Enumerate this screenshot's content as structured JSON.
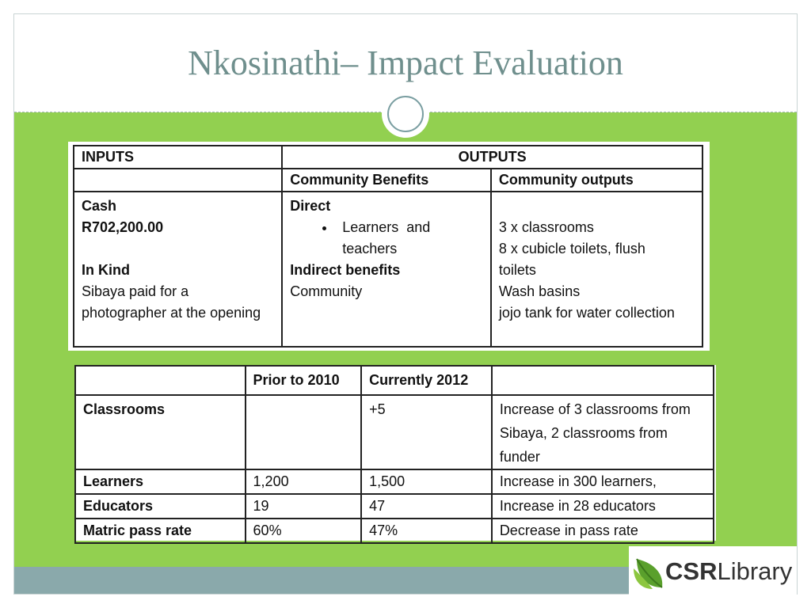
{
  "slide": {
    "title": "Nkosinathi– Impact Evaluation"
  },
  "logo": {
    "bold": "CSR",
    "light": "Library",
    "leaf_color": "#5aa02c"
  },
  "table1": {
    "header_inputs": "INPUTS",
    "header_outputs": "OUTPUTS",
    "sub_community_benefits": "Community Benefits",
    "sub_community_outputs": "Community outputs",
    "inputs": {
      "cash_label": "Cash",
      "cash_value": "R702,200.00",
      "inkind_label": "In Kind",
      "inkind_line1": "Sibaya paid for a",
      "inkind_line2": "photographer at the opening"
    },
    "benefits": {
      "direct_label": "Direct",
      "direct_item_line1": "Learners  and",
      "direct_item_line2": "teachers",
      "indirect_label": "Indirect benefits",
      "indirect_value": "Community"
    },
    "outputs": [
      "3 x classrooms",
      "8 x cubicle toilets, flush",
      "toilets",
      "Wash basins",
      "jojo tank for water collection"
    ]
  },
  "table2": {
    "headers": [
      "",
      "Prior to 2010",
      "Currently 2012",
      ""
    ],
    "rows": [
      {
        "label": "Classrooms",
        "prior": "",
        "current": "+5",
        "note_lines": [
          "Increase of 3 classrooms from",
          "Sibaya, 2 classrooms from",
          "funder"
        ]
      },
      {
        "label": "Learners",
        "prior": "1,200",
        "current": "1,500",
        "note_lines": [
          "Increase in 300 learners,"
        ]
      },
      {
        "label": "Educators",
        "prior": "19",
        "current": "47",
        "note_lines": [
          "Increase in 28 educators"
        ]
      },
      {
        "label": "Matric pass rate",
        "prior": "60%",
        "current": "47%",
        "note_lines": [
          "Decrease in pass rate"
        ]
      }
    ]
  }
}
